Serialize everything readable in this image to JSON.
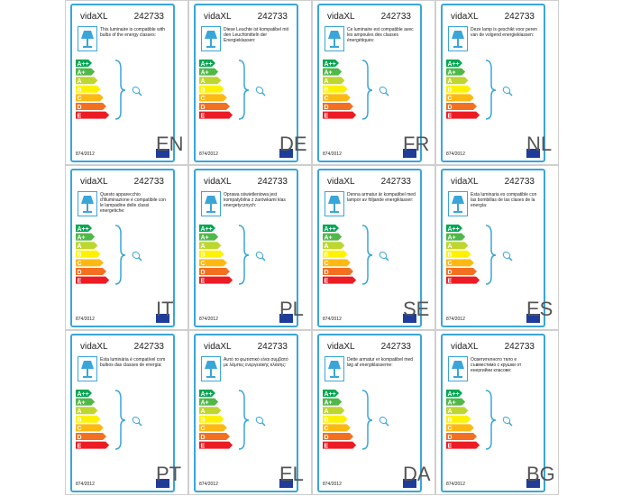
{
  "labels": [
    {
      "brand": "vidaXL",
      "code": "242733",
      "text": "This luminaire is compatible with bulbs of the energy classes:",
      "language": "EN",
      "regulation": "874/2012"
    },
    {
      "brand": "vidaXL",
      "code": "242733",
      "text": "Diese Leuchte ist kompatibel mit den Leuchtmitteln der Energieklassen:",
      "language": "DE",
      "regulation": "874/2012"
    },
    {
      "brand": "vidaXL",
      "code": "242733",
      "text": "Ce luminaire est compatible avec les ampoules des classes énergétiques:",
      "language": "FR",
      "regulation": "874/2012"
    },
    {
      "brand": "vidaXL",
      "code": "242733",
      "text": "Deze lamp is geschikt voor peren van de volgend energieklassen:",
      "language": "NL",
      "regulation": "874/2012"
    },
    {
      "brand": "vidaXL",
      "code": "242733",
      "text": "Questo apparecchio d'illuminazione è compatibile con le lampadine delle classi energetiche:",
      "language": "IT",
      "regulation": "874/2012"
    },
    {
      "brand": "vidaXL",
      "code": "242733",
      "text": "Oprawa oświetleniowa jest kompatybilna z żarówkami klas energetycznych:",
      "language": "PL",
      "regulation": "874/2012"
    },
    {
      "brand": "vidaXL",
      "code": "242733",
      "text": "Denna armatur är kompatibel med lampor av följande energiklasser:",
      "language": "SE",
      "regulation": "874/2012"
    },
    {
      "brand": "vidaXL",
      "code": "242733",
      "text": "Esta luminaria es compatible con las bombillas de las clases de la energía:",
      "language": "ES",
      "regulation": "874/2012"
    },
    {
      "brand": "vidaXL",
      "code": "242733",
      "text": "Esta luminária é compatível com bulbos das classes de energia:",
      "language": "PT",
      "regulation": "874/2012"
    },
    {
      "brand": "vidaXL",
      "code": "242733",
      "text": "Αυτό το φωτιστικό είναι συμβατό με λάμπες ενεργειακής κλάσης:",
      "language": "EL",
      "regulation": "874/2012"
    },
    {
      "brand": "vidaXL",
      "code": "242733",
      "text": "Dette armatur er kompatibel med løg af energiklasserne:",
      "language": "DA",
      "regulation": "874/2012"
    },
    {
      "brand": "vidaXL",
      "code": "242733",
      "text": "Осветителното тяло е съвместимо с крушки от енергийни класове:",
      "language": "BG",
      "regulation": "874/2012"
    }
  ],
  "classes": [
    {
      "name": "A++",
      "color": "#00a651"
    },
    {
      "name": "A+",
      "color": "#50b848"
    },
    {
      "name": "A",
      "color": "#bed630"
    },
    {
      "name": "B",
      "color": "#fff200"
    },
    {
      "name": "C",
      "color": "#fdb913"
    },
    {
      "name": "D",
      "color": "#f37021"
    },
    {
      "name": "E",
      "color": "#ed1c24"
    }
  ]
}
